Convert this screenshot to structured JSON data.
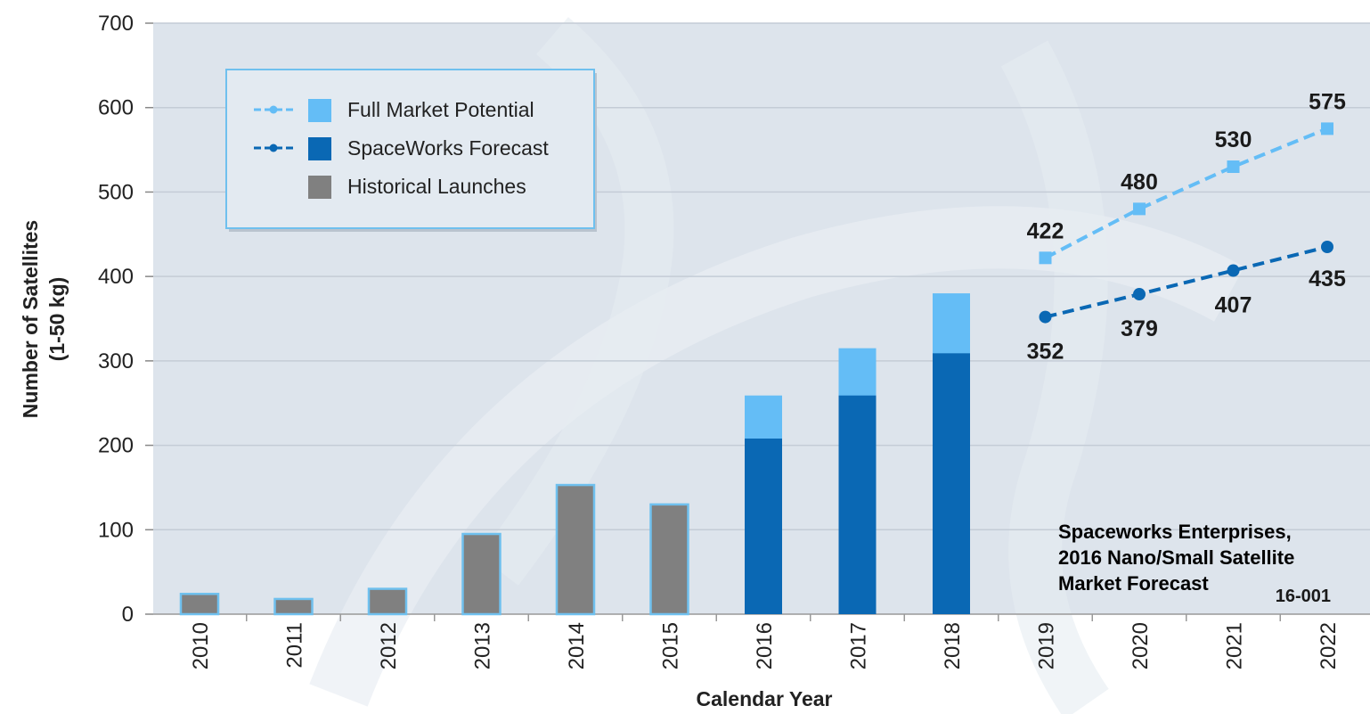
{
  "chart_data": {
    "type": "bar",
    "ylabel_line1": "Number of Satellites",
    "ylabel_line2": "(1-50 kg)",
    "xlabel": "Calendar Year",
    "ylim": [
      0,
      700
    ],
    "yticks": [
      0,
      100,
      200,
      300,
      400,
      500,
      600,
      700
    ],
    "grid": true,
    "legend_position": "top-left",
    "categories": [
      "2010",
      "2011",
      "2012",
      "2013",
      "2014",
      "2015",
      "2016",
      "2017",
      "2018",
      "2019",
      "2020",
      "2021",
      "2022"
    ],
    "series": [
      {
        "name": "Historical Launches",
        "kind": "bar",
        "color": "#808080",
        "values": [
          24,
          18,
          30,
          95,
          153,
          130,
          null,
          null,
          null,
          null,
          null,
          null,
          null
        ]
      },
      {
        "name": "SpaceWorks Forecast",
        "kind": "bar",
        "color": "#0a68b4",
        "values": [
          null,
          null,
          null,
          null,
          null,
          null,
          208,
          259,
          309,
          null,
          null,
          null,
          null
        ]
      },
      {
        "name": "Full Market Potential",
        "kind": "bar",
        "color": "#64bdf6",
        "values": [
          null,
          null,
          null,
          null,
          null,
          null,
          259,
          315,
          380,
          null,
          null,
          null,
          null
        ]
      },
      {
        "name": "Full Market Potential",
        "kind": "line",
        "color": "#64bdf6",
        "values": [
          null,
          null,
          null,
          null,
          null,
          null,
          null,
          null,
          null,
          422,
          480,
          530,
          575
        ],
        "labels": [
          "422",
          "480",
          "530",
          "575"
        ]
      },
      {
        "name": "SpaceWorks Forecast",
        "kind": "line",
        "color": "#0a68b4",
        "values": [
          null,
          null,
          null,
          null,
          null,
          null,
          null,
          null,
          null,
          352,
          379,
          407,
          435
        ],
        "labels": [
          "352",
          "379",
          "407",
          "435"
        ]
      }
    ],
    "legend": [
      {
        "label": "Full Market Potential",
        "color": "#64bdf6",
        "line": true
      },
      {
        "label": "SpaceWorks Forecast",
        "color": "#0a68b4",
        "line": true
      },
      {
        "label": "Historical Launches",
        "color": "#808080",
        "line": false
      }
    ],
    "annotations": {
      "source_line1": "Spaceworks Enterprises,",
      "source_line2": "2016 Nano/Small Satellite",
      "source_line3": "Market Forecast",
      "code": "16-001"
    }
  },
  "colors": {
    "plot_bg": "#dde4ec",
    "grid": "#c4ccd6",
    "legend_border": "#6fc0ee",
    "legend_bg": "#e3eaf1"
  }
}
